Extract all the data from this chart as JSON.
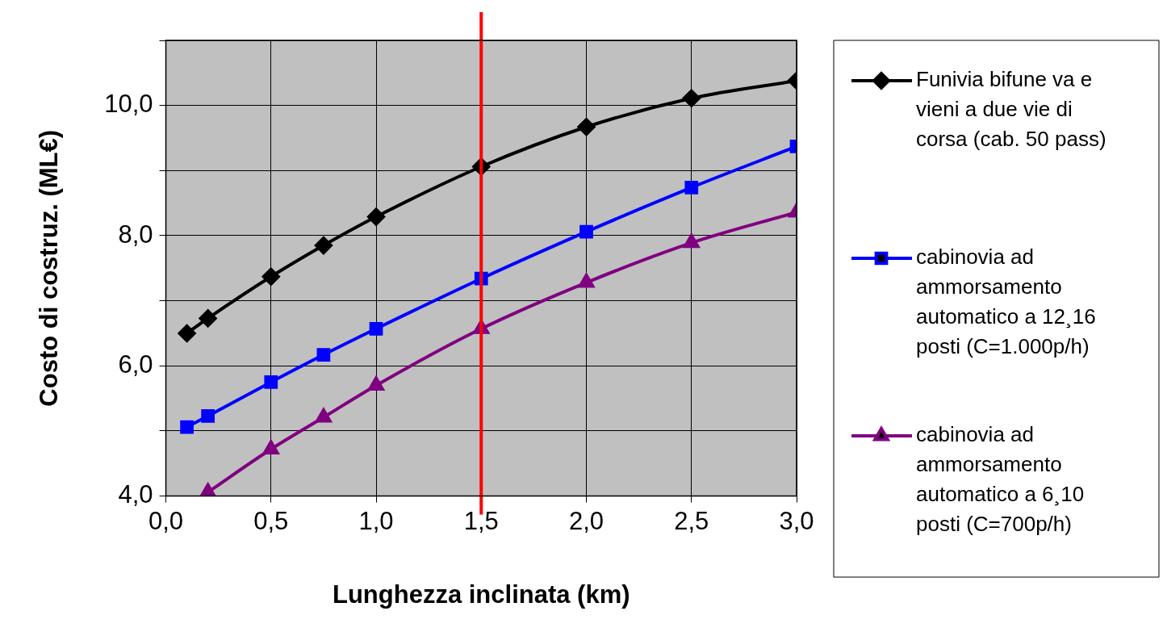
{
  "chart_data": {
    "type": "line",
    "xlabel": "Lunghezza inclinata (km)",
    "ylabel": "Costo di costruz. (ML€)",
    "xlim": [
      0,
      3
    ],
    "ylim": [
      4,
      11
    ],
    "xticks": [
      {
        "value": 0,
        "label": "0,0"
      },
      {
        "value": 0.5,
        "label": "0,5"
      },
      {
        "value": 1,
        "label": "1,0"
      },
      {
        "value": 1.5,
        "label": "1,5"
      },
      {
        "value": 2,
        "label": "2,0"
      },
      {
        "value": 2.5,
        "label": "2,5"
      },
      {
        "value": 3,
        "label": "3,0"
      }
    ],
    "yticks": [
      {
        "value": 4,
        "label": "4,0"
      },
      {
        "value": 5,
        "label": null
      },
      {
        "value": 6,
        "label": "6,0"
      },
      {
        "value": 7,
        "label": null
      },
      {
        "value": 8,
        "label": "8,0"
      },
      {
        "value": 9,
        "label": null
      },
      {
        "value": 10,
        "label": "10,0"
      },
      {
        "value": 11,
        "label": null
      }
    ],
    "grid": true,
    "legend": "right",
    "ref_lines": [
      {
        "axis": "x",
        "value": 1.5,
        "color": "#ff0000"
      }
    ],
    "series": [
      {
        "name": "Funivia bifune va e vieni a due vie di corsa (cab. 50 pass)",
        "color": "#000000",
        "marker": "diamond",
        "x": [
          0.1,
          0.2,
          0.5,
          0.75,
          1,
          1.5,
          2,
          2.5,
          3
        ],
        "values": [
          6.5,
          6.73,
          7.37,
          7.85,
          8.29,
          9.06,
          9.67,
          10.11,
          10.38
        ]
      },
      {
        "name": "cabinovia ad ammorsamento automatico a 12¸16 posti (C=1.000p/h)",
        "color": "#0000ff",
        "marker": "square",
        "x": [
          0.1,
          0.2,
          0.5,
          0.75,
          1,
          1.5,
          2,
          2.5,
          3
        ],
        "values": [
          5.06,
          5.23,
          5.75,
          6.17,
          6.57,
          7.34,
          8.06,
          8.74,
          9.37
        ]
      },
      {
        "name": "cabinovia ad ammorsamento automatico a 6¸10 posti (C=700p/h)",
        "color": "#800080",
        "marker": "triangle",
        "x": [
          0.2,
          0.5,
          0.75,
          1,
          1.5,
          2,
          2.5,
          3
        ],
        "values": [
          4.06,
          4.72,
          5.21,
          5.7,
          6.57,
          7.28,
          7.89,
          8.36
        ]
      }
    ]
  }
}
